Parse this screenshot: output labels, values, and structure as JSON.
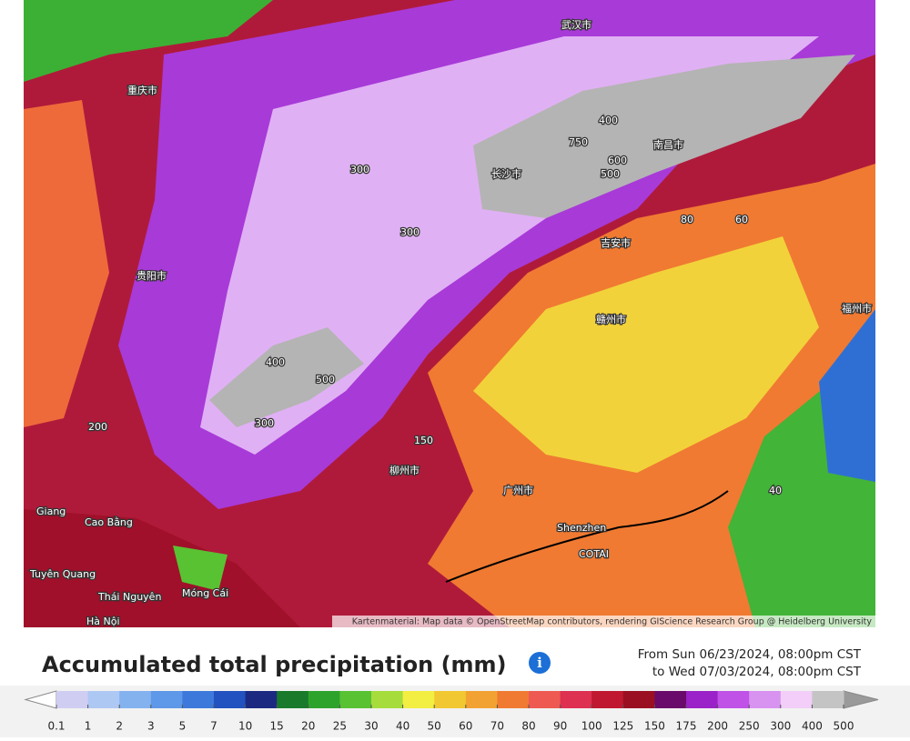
{
  "map": {
    "labels": [
      "750",
      "600",
      "500",
      "400",
      "300",
      "300",
      "500",
      "400",
      "300",
      "200",
      "150",
      "40",
      "60",
      "80",
      "Shenzhen",
      "COTAI",
      "Cao Bằng",
      "Tuyên Quang",
      "Thái Nguyên",
      "Móng Cái",
      "Hà Nội",
      "Giang",
      "重庆市",
      "贵阳市",
      "长沙市",
      "南昌市",
      "广州市",
      "武汉市",
      "吉安市",
      "赣州市",
      "福州市",
      "柳州市"
    ],
    "attribution": "Kartenmaterial: Map data © OpenStreetMap contributors, rendering GIScience Research Group @ Heidelberg University"
  },
  "legend": {
    "title": "Accumulated total precipitation (mm)",
    "date_from": "From Sun 06/23/2024, 08:00pm CST",
    "date_to": "to Wed 07/03/2024, 08:00pm CST",
    "ticks": [
      0.1,
      1,
      2,
      3,
      5,
      7,
      10,
      15,
      20,
      25,
      30,
      40,
      50,
      60,
      70,
      80,
      90,
      100,
      125,
      150,
      175,
      200,
      250,
      300,
      400,
      500
    ],
    "colors": [
      "#cfcdf2",
      "#aec8f4",
      "#84b2ef",
      "#5e98e8",
      "#3c79db",
      "#2252bf",
      "#1b2a80",
      "#197a2b",
      "#2ea32c",
      "#58c233",
      "#a6dc3c",
      "#f2ee42",
      "#f2c832",
      "#f2a232",
      "#f07a32",
      "#ee5a52",
      "#de3050",
      "#c01830",
      "#9a0f22",
      "#6a0a6a",
      "#9a22c8",
      "#c052e8",
      "#d892f0",
      "#f2cef8",
      "#c4c4c4"
    ],
    "under_color": "#ffffff",
    "over_color": "#9a9a9a"
  }
}
